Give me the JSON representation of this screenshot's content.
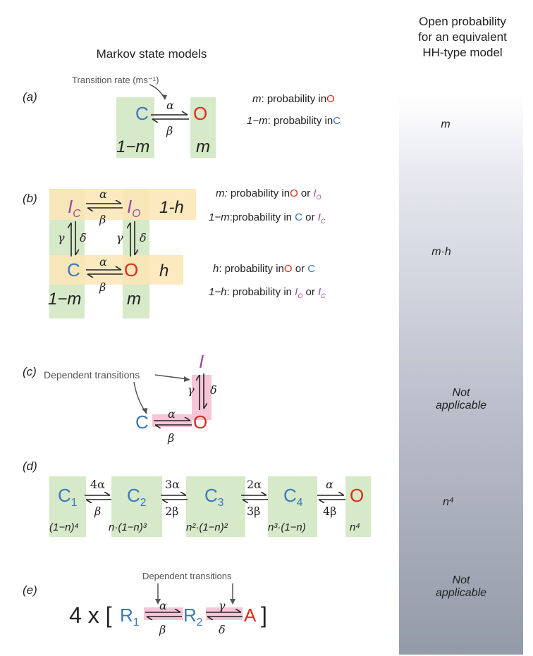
{
  "headers": {
    "left": "Markov state models",
    "right_line1": "Open probability",
    "right_line2": "for an equivalent",
    "right_line3": "HH-type model"
  },
  "panel_labels": [
    "(a)",
    "(b)",
    "(c)",
    "(d)",
    "(e)"
  ],
  "a": {
    "annotation": "Transition rate (ms⁻¹)",
    "C": "C",
    "O": "O",
    "alpha": "α",
    "beta": "β",
    "under_C": "1−m",
    "under_O": "m",
    "desc1_var": "m",
    "desc1_text": ": probability in",
    "desc1_state": "O",
    "desc2_var": "1−m",
    "desc2_text": ": probability in",
    "desc2_state": "C",
    "right": "m"
  },
  "b": {
    "IC": "I",
    "IC_sub": "C",
    "IO": "I",
    "IO_sub": "O",
    "C": "C",
    "O": "O",
    "alpha": "α",
    "beta": "β",
    "gamma": "γ",
    "delta": "δ",
    "one_minus_h": "1-h",
    "h": "h",
    "under_C": "1−m",
    "under_O": "m",
    "d1_var": "m:",
    "d1_text": " probability in",
    "d1_s1": "O",
    "d1_or": " or ",
    "d1_s2": "I",
    "d1_s2_sub": "O",
    "d2_var": "1−m",
    "d2_text": ":probability in ",
    "d2_s1": "C",
    "d2_or": " or ",
    "d2_s2": "I",
    "d2_s2_sub": "C",
    "d3_var": "h",
    "d3_text": ": probability in",
    "d3_s1": "O",
    "d3_or": " or ",
    "d3_s2": "C",
    "d4_var": "1−h",
    "d4_text": ": probability in ",
    "d4_s1": "I",
    "d4_s1_sub": "O",
    "d4_or": " or ",
    "d4_s2": "I",
    "d4_s2_sub": "C",
    "right": "m·h"
  },
  "c": {
    "annotation": "Dependent  transitions",
    "I": "I",
    "C": "C",
    "O": "O",
    "alpha": "α",
    "beta": "β",
    "gamma": "γ",
    "delta": "δ",
    "right_line1": "Not",
    "right_line2": "applicable"
  },
  "d": {
    "states": [
      "C",
      "C",
      "C",
      "C",
      "O"
    ],
    "subs": [
      "1",
      "2",
      "3",
      "4",
      ""
    ],
    "forward": [
      "4α",
      "3α",
      "2α",
      "α"
    ],
    "backward": [
      "β",
      "2β",
      "3β",
      "4β"
    ],
    "under": [
      "(1−n)⁴",
      "n·(1−n)³",
      "n²·(1−n)²",
      "n³·(1−n)",
      "n⁴"
    ],
    "right": "n⁴"
  },
  "e": {
    "annotation": "Dependent transitions",
    "prefix": "4 x [",
    "R1": "R",
    "R1_sub": "1",
    "R2": "R",
    "R2_sub": "2",
    "A": "A",
    "suffix": "]",
    "alpha": "α",
    "beta": "β",
    "gamma": "γ",
    "delta": "δ",
    "right_line1": "Not",
    "right_line2": "applicable"
  },
  "colors": {
    "closed": "#3a78bd",
    "open": "#e02b1b",
    "inactivated": "#9b4ca4",
    "green_box": "#d6e9c9",
    "yellow_box": "#fbe5b5",
    "pink_box": "#f6c6d8"
  }
}
